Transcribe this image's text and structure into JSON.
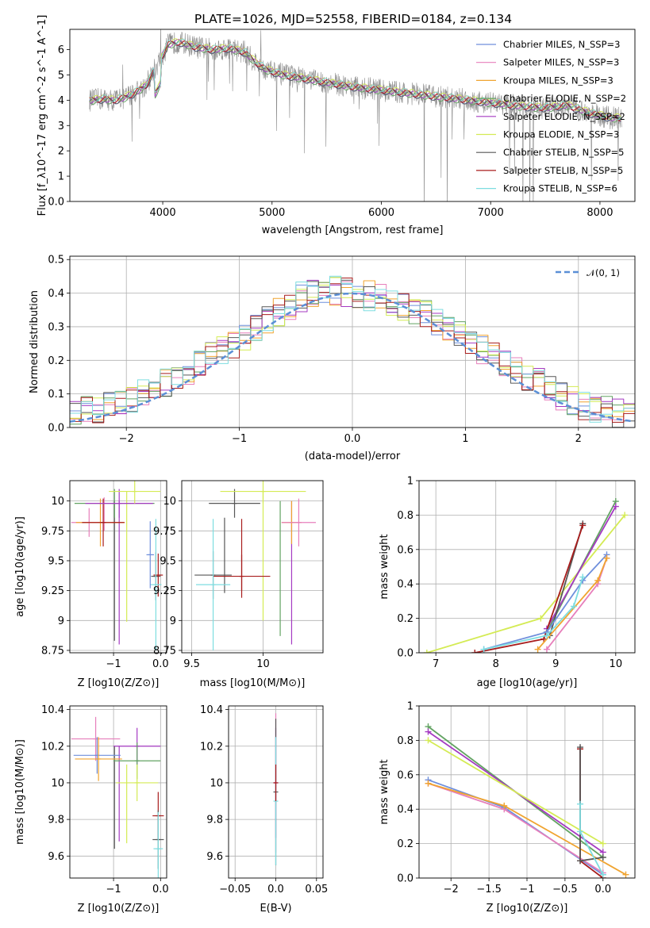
{
  "title": "PLATE=1026, MJD=52558, FIBERID=0184, z=0.134",
  "colors": [
    "#6f8fdc",
    "#e77fbb",
    "#f0a430",
    "#62a362",
    "#a53ac2",
    "#d4eb54",
    "#575757",
    "#a81c1c",
    "#7ddde0"
  ],
  "chart_data": [
    {
      "id": "spectrum",
      "type": "line",
      "xlabel": "wavelength [Angstrom, rest frame]",
      "ylabel": "Flux [f_λ10^-17 erg cm^-2 s^-1 A^-1]",
      "xlim": [
        3150,
        8320
      ],
      "ylim": [
        0,
        6.8
      ],
      "xticks": [
        4000,
        5000,
        6000,
        7000,
        8000
      ],
      "yticks": [
        0,
        1,
        2,
        3,
        4,
        5,
        6
      ],
      "grid": false,
      "legend_position": "top-right",
      "series": [
        {
          "name": "Chabrier MILES, N_SSP=3",
          "color": "#6f8fdc"
        },
        {
          "name": "Salpeter MILES, N_SSP=3",
          "color": "#e77fbb"
        },
        {
          "name": "Kroupa MILES, N_SSP=3",
          "color": "#f0a430"
        },
        {
          "name": "Chabrier ELODIE, N_SSP=2",
          "color": "#62a362"
        },
        {
          "name": "Salpeter ELODIE, N_SSP=2",
          "color": "#a53ac2"
        },
        {
          "name": "Kroupa ELODIE, N_SSP=3",
          "color": "#d4eb54"
        },
        {
          "name": "Chabrier STELIB, N_SSP=5",
          "color": "#575757"
        },
        {
          "name": "Salpeter STELIB, N_SSP=5",
          "color": "#a81c1c"
        },
        {
          "name": "Kroupa STELIB, N_SSP=6",
          "color": "#7ddde0"
        }
      ],
      "continuum": {
        "x": [
          3350,
          3450,
          3550,
          3650,
          3750,
          3850,
          3950,
          4050,
          4150,
          4300,
          4450,
          4600,
          4750,
          4850,
          4950,
          5100,
          5300,
          5500,
          5700,
          5900,
          6100,
          6300,
          6500,
          6700,
          6900,
          7100,
          7300,
          7500,
          7700,
          7900,
          8100
        ],
        "y": [
          4.0,
          4.05,
          4.0,
          4.1,
          4.3,
          4.6,
          5.4,
          6.2,
          6.3,
          6.1,
          6.0,
          6.05,
          5.9,
          5.5,
          5.2,
          5.0,
          4.85,
          4.7,
          4.55,
          4.45,
          4.35,
          4.25,
          4.15,
          4.05,
          3.95,
          3.85,
          3.75,
          3.7,
          3.8,
          3.5,
          3.3
        ]
      }
    },
    {
      "id": "residuals",
      "type": "histogram",
      "xlabel": "(data-model)/error",
      "ylabel": "Normed distribution",
      "xlim": [
        -2.5,
        2.5
      ],
      "ylim": [
        0,
        0.51
      ],
      "xticks": [
        -2,
        -1,
        0,
        1,
        2
      ],
      "yticks": [
        0.0,
        0.1,
        0.2,
        0.3,
        0.4,
        0.5
      ],
      "grid": true,
      "legend_position": "top-right",
      "legend_label": "𝒩(0, 1)",
      "reference_curve": {
        "name": "𝒩(0, 1)",
        "mu": 0,
        "sigma": 1,
        "color": "#5b8fd6"
      },
      "bin_width": 0.1,
      "envelope": {
        "x": [
          -2.5,
          -2.0,
          -1.5,
          -1.0,
          -0.7,
          -0.4,
          -0.2,
          0.0,
          0.2,
          0.4,
          0.7,
          1.0,
          1.5,
          2.0,
          2.5
        ],
        "y": [
          0.04,
          0.07,
          0.16,
          0.26,
          0.33,
          0.4,
          0.41,
          0.4,
          0.39,
          0.37,
          0.33,
          0.26,
          0.16,
          0.07,
          0.03
        ]
      }
    },
    {
      "id": "age_vs_Z",
      "type": "errorbar",
      "xlabel": "Z [log10(Z/Z⊙)]",
      "ylabel": "age  [log10(age/yr)]",
      "xlim": [
        -1.93,
        0.13
      ],
      "ylim": [
        8.73,
        10.17
      ],
      "xticks": [
        -1,
        0
      ],
      "yticks": [
        8.75,
        9.0,
        9.25,
        9.5,
        9.75,
        10.0
      ],
      "grid": true,
      "points": [
        {
          "x": -1.52,
          "xerr": 0.38,
          "y": 9.82,
          "yerr": 0.12,
          "color": "#e77fbb"
        },
        {
          "x": -1.28,
          "xerr": 0.52,
          "y": 9.82,
          "yerr": 0.2,
          "color": "#f0a430"
        },
        {
          "x": -1.22,
          "xerr": 0.45,
          "y": 9.82,
          "yerr": 0.2,
          "color": "#a81c1c"
        },
        {
          "x": -0.98,
          "xerr": 0.85,
          "y": 9.98,
          "yerr": 0.12,
          "color": "#62a362"
        },
        {
          "x": -0.88,
          "xerr": 0.72,
          "y": 9.98,
          "yerr": 0.12,
          "color": "#a53ac2"
        },
        {
          "x": -0.55,
          "xerr": 0.55,
          "y": 10.08,
          "yerr": 0.1,
          "color": "#d4eb54"
        },
        {
          "x": -0.1,
          "xerr": 0.1,
          "y": 9.37,
          "yerr": 0.2,
          "color": "#575757"
        },
        {
          "x": -0.05,
          "xerr": 0.1,
          "y": 9.38,
          "yerr": 0.18,
          "color": "#a81c1c"
        },
        {
          "x": -0.1,
          "xerr": 0.12,
          "y": 9.3,
          "yerr": 0.55,
          "color": "#7ddde0"
        },
        {
          "x": -0.22,
          "xerr": 0.08,
          "y": 9.55,
          "yerr": 0.28,
          "color": "#6f8fdc"
        }
      ],
      "vlines": [
        {
          "x": -0.98,
          "y0": 8.83,
          "y1": 10.0,
          "color": "#575757"
        },
        {
          "x": -0.88,
          "y0": 8.8,
          "y1": 10.0,
          "color": "#a53ac2"
        },
        {
          "x": -0.72,
          "y0": 8.99,
          "y1": 10.08,
          "color": "#d4eb54"
        },
        {
          "x": -1.2,
          "y0": 9.75,
          "y1": 10.03,
          "color": "#e77fbb"
        }
      ]
    },
    {
      "id": "age_vs_mass",
      "type": "errorbar",
      "xlabel": "mass [log10(M/M⊙)]",
      "ylabel": "",
      "xlim": [
        9.43,
        10.42
      ],
      "ylim": [
        8.73,
        10.17
      ],
      "xticks": [
        9.5,
        10.0
      ],
      "yticks": [
        8.75,
        9.0,
        9.25,
        9.5,
        9.75,
        10.0
      ],
      "grid": true,
      "points": [
        {
          "x": 9.8,
          "xerr": 0.18,
          "y": 9.98,
          "yerr": 0.12,
          "color": "#575757"
        },
        {
          "x": 10.0,
          "xerr": 0.3,
          "y": 10.08,
          "yerr": 0.1,
          "color": "#d4eb54"
        },
        {
          "x": 10.2,
          "xerr": 0.07,
          "y": 9.82,
          "yerr": 0.18,
          "color": "#f0a430"
        },
        {
          "x": 10.25,
          "xerr": 0.12,
          "y": 9.82,
          "yerr": 0.2,
          "color": "#e77fbb"
        },
        {
          "x": 9.65,
          "xerr": 0.13,
          "y": 9.38,
          "yerr": 0.2,
          "color": "#575757"
        },
        {
          "x": 9.85,
          "xerr": 0.2,
          "y": 9.37,
          "yerr": 0.18,
          "color": "#a81c1c"
        },
        {
          "x": 9.65,
          "xerr": 0.12,
          "y": 9.3,
          "yerr": 0.55,
          "color": "#7ddde0"
        }
      ],
      "vlines": [
        {
          "x": 9.73,
          "y0": 9.23,
          "y1": 9.86,
          "color": "#575757"
        },
        {
          "x": 9.85,
          "y0": 9.25,
          "y1": 9.85,
          "color": "#a81c1c"
        },
        {
          "x": 10.12,
          "y0": 8.87,
          "y1": 10.0,
          "color": "#62a362"
        },
        {
          "x": 10.2,
          "y0": 8.8,
          "y1": 10.0,
          "color": "#a53ac2"
        },
        {
          "x": 10.0,
          "y0": 9.0,
          "y1": 10.08,
          "color": "#d4eb54"
        }
      ]
    },
    {
      "id": "massweight_vs_age",
      "type": "line",
      "xlabel": "age  [log10(age/yr)]",
      "ylabel": "mass weight",
      "xlim": [
        6.72,
        10.32
      ],
      "ylim": [
        0,
        1.0
      ],
      "xticks": [
        7,
        8,
        9,
        10
      ],
      "yticks": [
        0.0,
        0.2,
        0.4,
        0.6,
        0.8,
        1.0
      ],
      "grid": true,
      "series": [
        {
          "color": "#d4eb54",
          "x": [
            6.85,
            8.75,
            10.15
          ],
          "y": [
            0.0,
            0.2,
            0.8
          ]
        },
        {
          "color": "#62a362",
          "x": [
            8.85,
            10.0
          ],
          "y": [
            0.12,
            0.88
          ]
        },
        {
          "color": "#a53ac2",
          "x": [
            8.85,
            10.0
          ],
          "y": [
            0.14,
            0.85
          ]
        },
        {
          "color": "#575757",
          "x": [
            8.9,
            9.45
          ],
          "y": [
            0.1,
            0.75
          ]
        },
        {
          "color": "#a81c1c",
          "x": [
            7.65,
            8.8,
            9.45
          ],
          "y": [
            0.0,
            0.08,
            0.74
          ]
        },
        {
          "color": "#6f8fdc",
          "x": [
            7.8,
            8.85,
            9.45,
            9.85
          ],
          "y": [
            0.02,
            0.12,
            0.42,
            0.57
          ]
        },
        {
          "color": "#e77fbb",
          "x": [
            8.85,
            9.7,
            9.85
          ],
          "y": [
            0.02,
            0.4,
            0.55
          ]
        },
        {
          "color": "#f0a430",
          "x": [
            8.7,
            9.7,
            9.85
          ],
          "y": [
            0.02,
            0.42,
            0.55
          ]
        },
        {
          "color": "#7ddde0",
          "x": [
            7.8,
            8.85,
            9.3,
            9.45
          ],
          "y": [
            0.02,
            0.1,
            0.27,
            0.44
          ]
        }
      ]
    },
    {
      "id": "mass_vs_Z",
      "type": "errorbar",
      "xlabel": "Z [log10(Z/Z⊙)]",
      "ylabel": "mass [log10(M/M⊙)]",
      "xlim": [
        -1.93,
        0.13
      ],
      "ylim": [
        9.48,
        10.42
      ],
      "xticks": [
        -1,
        0
      ],
      "yticks": [
        9.6,
        9.8,
        10.0,
        10.2,
        10.4
      ],
      "grid": true,
      "points": [
        {
          "x": -1.38,
          "xerr": 0.52,
          "y": 10.24,
          "yerr": 0.12,
          "color": "#e77fbb"
        },
        {
          "x": -1.35,
          "xerr": 0.5,
          "y": 10.15,
          "yerr": 0.1,
          "color": "#6f8fdc"
        },
        {
          "x": -1.32,
          "xerr": 0.5,
          "y": 10.13,
          "yerr": 0.12,
          "color": "#f0a430"
        },
        {
          "x": -0.5,
          "xerr": 0.5,
          "y": 10.2,
          "yerr": 0.1,
          "color": "#a53ac2"
        },
        {
          "x": -0.5,
          "xerr": 0.5,
          "y": 10.12,
          "yerr": 0.1,
          "color": "#62a362"
        },
        {
          "x": -0.5,
          "xerr": 0.45,
          "y": 10.0,
          "yerr": 0.1,
          "color": "#d4eb54"
        },
        {
          "x": -0.05,
          "xerr": 0.12,
          "y": 9.82,
          "yerr": 0.13,
          "color": "#a81c1c"
        },
        {
          "x": -0.05,
          "xerr": 0.12,
          "y": 9.69,
          "yerr": 0.16,
          "color": "#575757"
        },
        {
          "x": -0.05,
          "xerr": 0.1,
          "y": 9.64,
          "yerr": 0.2,
          "color": "#7ddde0"
        }
      ],
      "vlines": [
        {
          "x": -0.98,
          "y0": 9.64,
          "y1": 10.2,
          "color": "#575757"
        },
        {
          "x": -0.88,
          "y0": 9.68,
          "y1": 10.2,
          "color": "#a53ac2"
        },
        {
          "x": -0.72,
          "y0": 9.67,
          "y1": 10.1,
          "color": "#d4eb54"
        }
      ]
    },
    {
      "id": "mass_vs_ebv",
      "type": "errorbar",
      "xlabel": "E(B-V)",
      "ylabel": "",
      "xlim": [
        -0.058,
        0.058
      ],
      "ylim": [
        9.48,
        10.42
      ],
      "xticks": [
        -0.05,
        0.0,
        0.05
      ],
      "yticks": [
        9.6,
        9.8,
        10.0,
        10.2,
        10.4
      ],
      "grid": true,
      "points": [
        {
          "x": 0.0,
          "xerr": 0.0,
          "y": 10.0,
          "yerr": 0.38,
          "color": "#e77fbb"
        },
        {
          "x": 0.0,
          "xerr": 0.0,
          "y": 10.0,
          "yerr": 0.3,
          "color": "#a53ac2"
        },
        {
          "x": 0.0,
          "xerr": 0.0,
          "y": 9.95,
          "yerr": 0.4,
          "color": "#575757"
        },
        {
          "x": 0.0,
          "xerr": 0.0,
          "y": 9.9,
          "yerr": 0.35,
          "color": "#7ddde0"
        },
        {
          "x": 0.0,
          "xerr": 0.0,
          "y": 10.0,
          "yerr": 0.1,
          "color": "#a81c1c"
        }
      ],
      "vlines": []
    },
    {
      "id": "massweight_vs_Z",
      "type": "line",
      "xlabel": "Z [log10(Z/Z⊙)]",
      "ylabel": "mass weight",
      "xlim": [
        -2.42,
        0.42
      ],
      "ylim": [
        0,
        1.0
      ],
      "xticks": [
        -2.0,
        -1.5,
        -1.0,
        -0.5,
        0.0
      ],
      "yticks": [
        0.0,
        0.2,
        0.4,
        0.6,
        0.8,
        1.0
      ],
      "grid": true,
      "series": [
        {
          "color": "#62a362",
          "x": [
            -2.3,
            0.0
          ],
          "y": [
            0.88,
            0.12
          ]
        },
        {
          "color": "#a53ac2",
          "x": [
            -2.3,
            0.0
          ],
          "y": [
            0.85,
            0.15
          ]
        },
        {
          "color": "#d4eb54",
          "x": [
            -2.3,
            0.0
          ],
          "y": [
            0.8,
            0.2
          ]
        },
        {
          "color": "#6f8fdc",
          "x": [
            -2.3,
            -1.3,
            0.0
          ],
          "y": [
            0.57,
            0.41,
            0.02
          ]
        },
        {
          "color": "#e77fbb",
          "x": [
            -2.3,
            -1.3,
            0.0
          ],
          "y": [
            0.55,
            0.4,
            0.03
          ]
        },
        {
          "color": "#f0a430",
          "x": [
            -2.3,
            -1.3,
            0.3
          ],
          "y": [
            0.55,
            0.42,
            0.02
          ]
        },
        {
          "color": "#a81c1c",
          "x": [
            -0.3,
            -0.3,
            0.0
          ],
          "y": [
            0.75,
            0.1,
            0.0
          ]
        },
        {
          "color": "#575757",
          "x": [
            -0.3,
            -0.3,
            0.0
          ],
          "y": [
            0.76,
            0.1,
            0.12
          ]
        },
        {
          "color": "#7ddde0",
          "x": [
            -0.3,
            -0.3,
            0.0
          ],
          "y": [
            0.43,
            0.27,
            0.02
          ]
        }
      ]
    }
  ]
}
